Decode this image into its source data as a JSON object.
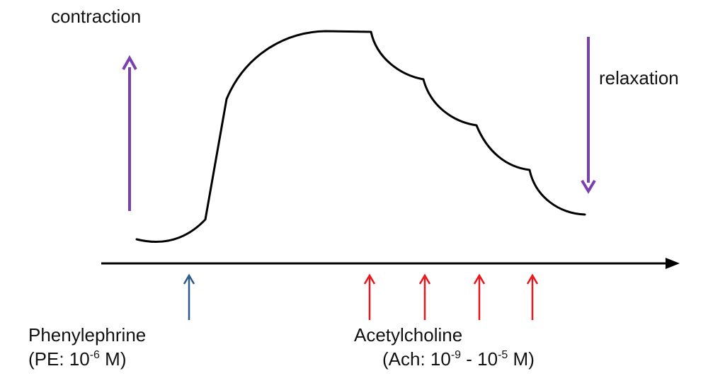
{
  "labels": {
    "contraction": "contraction",
    "relaxation": "relaxation"
  },
  "phenylephrine": {
    "name": "Phenylephrine",
    "abbrev": "(PE: 10",
    "exponent": "-6",
    "unit": " M)"
  },
  "acetylcholine": {
    "name": "Acetylcholine",
    "abbrev": "(Ach: 10",
    "exp_low": "-9",
    "range_sep": " - 10",
    "exp_high": "-5",
    "unit": " M)"
  },
  "colors": {
    "trace": "#000000",
    "direction_arrow": "#7b3fb0",
    "pe_arrow": "#2d5a8a",
    "ach_arrow": "#e8161b"
  }
}
